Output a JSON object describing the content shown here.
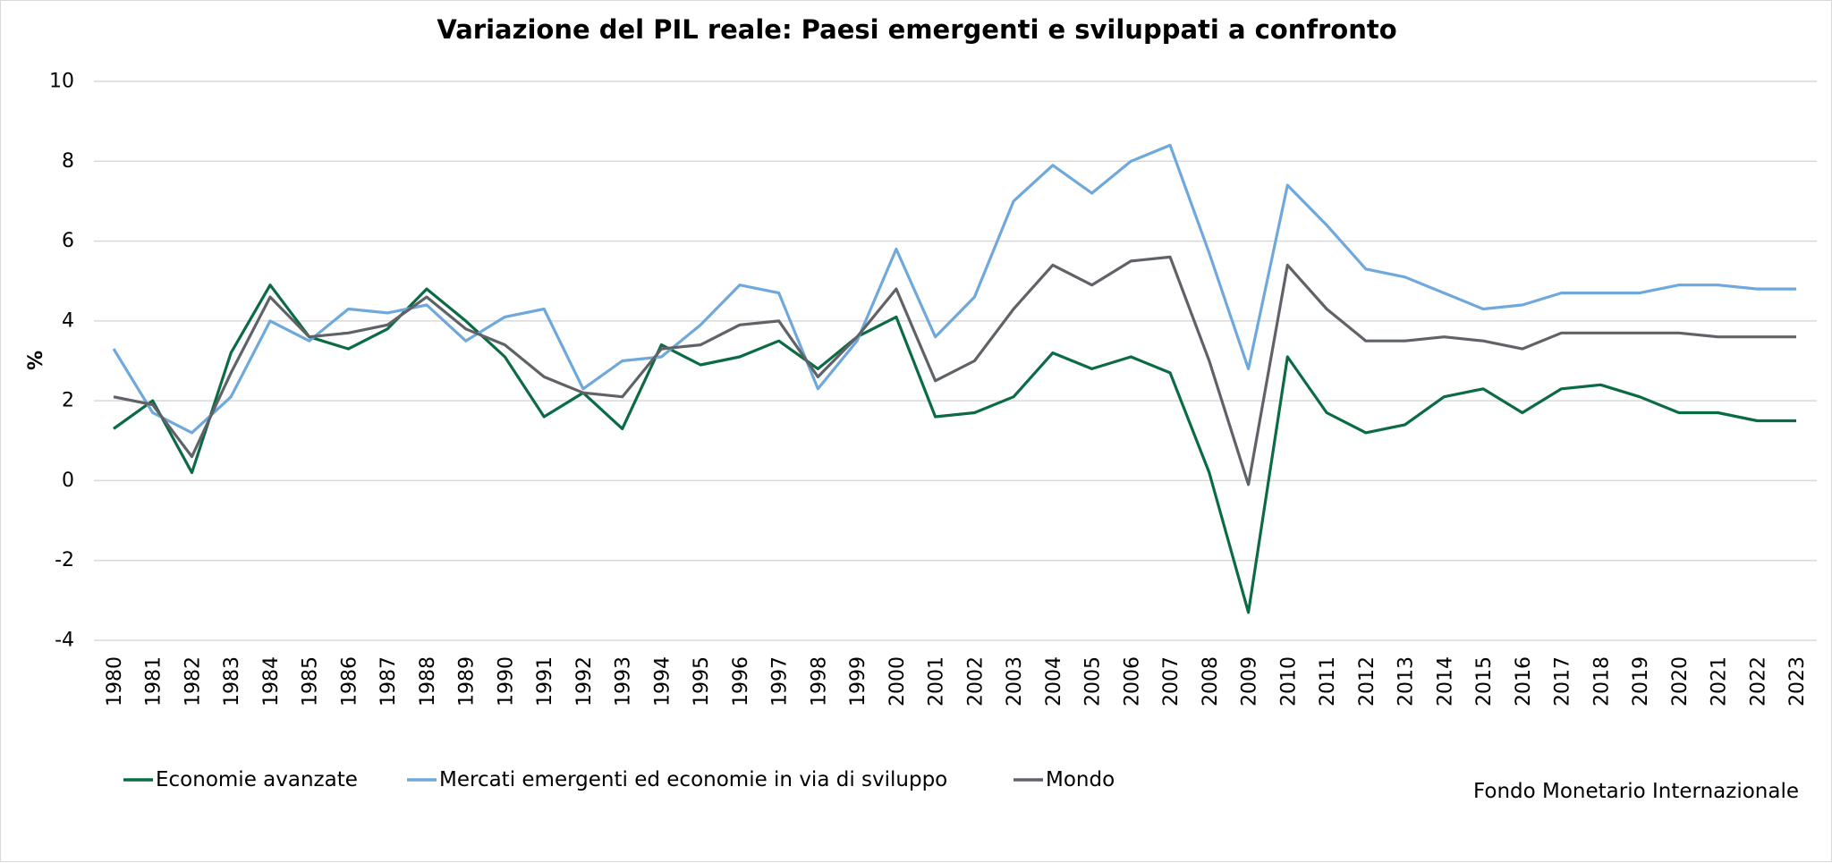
{
  "chart_data": {
    "type": "line",
    "title": "Variazione del PIL reale: Paesi emergenti e sviluppati a confronto",
    "ylabel": "%",
    "xlabel": "",
    "ylim": [
      -4,
      10
    ],
    "yticks": [
      10,
      8,
      6,
      4,
      2,
      0,
      -2,
      -4
    ],
    "ytick_labels": [
      "10",
      "8",
      "6",
      "4",
      "2",
      "0",
      "-2",
      "-4"
    ],
    "grid": true,
    "legend_position": "bottom-left",
    "source": "Fondo Monetario Internazionale",
    "categories": [
      "1980",
      "1981",
      "1982",
      "1983",
      "1984",
      "1985",
      "1986",
      "1987",
      "1988",
      "1989",
      "1990",
      "1991",
      "1992",
      "1993",
      "1994",
      "1995",
      "1996",
      "1997",
      "1998",
      "1999",
      "2000",
      "2001",
      "2002",
      "2003",
      "2004",
      "2005",
      "2006",
      "2007",
      "2008",
      "2009",
      "2010",
      "2011",
      "2012",
      "2013",
      "2014",
      "2015",
      "2016",
      "2017",
      "2018",
      "2019",
      "2020",
      "2021",
      "2022",
      "2023"
    ],
    "series": [
      {
        "name": "Economie avanzate",
        "color": "#0b6b44",
        "values": [
          1.3,
          2.0,
          0.2,
          3.2,
          4.9,
          3.6,
          3.3,
          3.8,
          4.8,
          4.0,
          3.1,
          1.6,
          2.2,
          1.3,
          3.4,
          2.9,
          3.1,
          3.5,
          2.8,
          3.6,
          4.1,
          1.6,
          1.7,
          2.1,
          3.2,
          2.8,
          3.1,
          2.7,
          0.2,
          -3.3,
          3.1,
          1.7,
          1.2,
          1.4,
          2.1,
          2.3,
          1.7,
          2.3,
          2.4,
          2.1,
          1.7,
          1.7,
          1.5,
          1.5
        ]
      },
      {
        "name": "Mercati emergenti ed economie in via di sviluppo",
        "color": "#6fa8dc",
        "values": [
          3.3,
          1.7,
          1.2,
          2.1,
          4.0,
          3.5,
          4.3,
          4.2,
          4.4,
          3.5,
          4.1,
          4.3,
          2.3,
          3.0,
          3.1,
          3.9,
          4.9,
          4.7,
          2.3,
          3.5,
          5.8,
          3.6,
          4.6,
          7.0,
          7.9,
          7.2,
          8.0,
          8.4,
          5.7,
          2.8,
          7.4,
          6.4,
          5.3,
          5.1,
          4.7,
          4.3,
          4.4,
          4.7,
          4.7,
          4.7,
          4.9,
          4.9,
          4.8,
          4.8
        ]
      },
      {
        "name": "Mondo",
        "color": "#5f6368",
        "values": [
          2.1,
          1.9,
          0.6,
          2.7,
          4.6,
          3.6,
          3.7,
          3.9,
          4.6,
          3.8,
          3.4,
          2.6,
          2.2,
          2.1,
          3.3,
          3.4,
          3.9,
          4.0,
          2.6,
          3.6,
          4.8,
          2.5,
          3.0,
          4.3,
          5.4,
          4.9,
          5.5,
          5.6,
          3.0,
          -0.1,
          5.4,
          4.3,
          3.5,
          3.5,
          3.6,
          3.5,
          3.3,
          3.7,
          3.7,
          3.7,
          3.7,
          3.6,
          3.6,
          3.6
        ]
      }
    ]
  }
}
